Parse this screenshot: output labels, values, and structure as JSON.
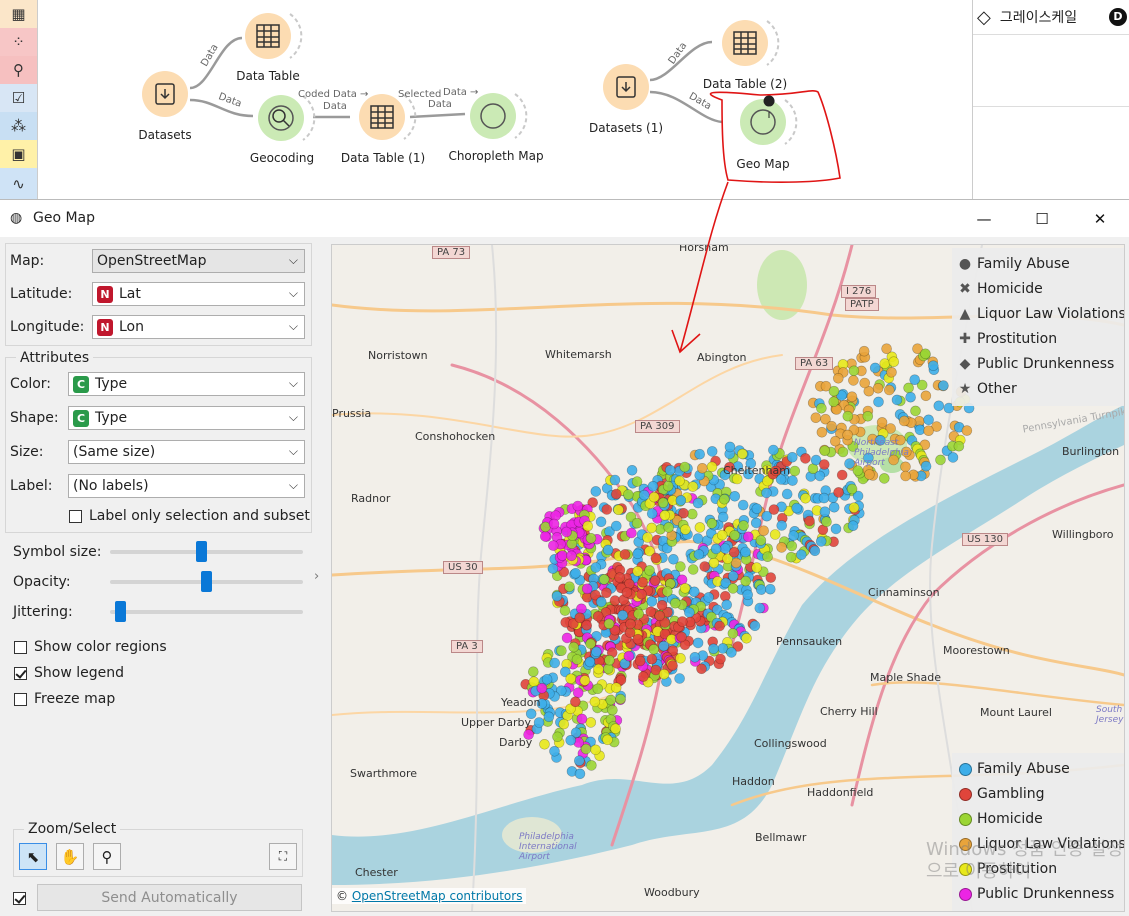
{
  "workflow": {
    "nodes": {
      "datasets": "Datasets",
      "data_table": "Data Table",
      "geocoding": "Geocoding",
      "data_table_1": "Data Table (1)",
      "choropleth_map": "Choropleth Map",
      "datasets_1": "Datasets (1)",
      "data_table_2": "Data Table (2)",
      "geo_map": "Geo Map"
    },
    "links": {
      "datasets_to_table": "Data",
      "datasets_to_geocoding": "Data",
      "geocoding_to_table_a": "Coded",
      "geocoding_to_table_b": "Data →",
      "geocoding_to_table_c": "Data",
      "table_to_choropleth_a": "Selected",
      "table_to_choropleth_b": "Data →",
      "table_to_choropleth_c": "Data",
      "datasets1_to_table2": "Data",
      "datasets1_to_geomap": "Data"
    }
  },
  "app_bar": {
    "label": "그레이스케일"
  },
  "window": {
    "title": "Geo Map",
    "minimize": "—",
    "maximize": "☐",
    "close": "✕"
  },
  "panel": {
    "map_label": "Map:",
    "map_value": "OpenStreetMap",
    "latitude_label": "Latitude:",
    "latitude_value": "Lat",
    "longitude_label": "Longitude:",
    "longitude_value": "Lon",
    "numeric_badge": "N",
    "categorical_badge": "C",
    "attributes_title": "Attributes",
    "color_label": "Color:",
    "color_value": "Type",
    "shape_label": "Shape:",
    "shape_value": "Type",
    "size_label": "Size:",
    "size_value": "(Same size)",
    "label_label": "Label:",
    "label_value": "(No labels)",
    "label_only_selection": "Label only selection and subset",
    "symbol_size_label": "Symbol size:",
    "opacity_label": "Opacity:",
    "jittering_label": "Jittering:",
    "symbol_size_level": 0.47,
    "opacity_level": 0.5,
    "jittering_level": 0.03,
    "show_color_regions": "Show color regions",
    "show_legend": "Show legend",
    "freeze_map": "Freeze map",
    "zoom_select_title": "Zoom/Select",
    "send_automatically": "Send Automatically"
  },
  "map": {
    "attribution_prefix": "©",
    "attribution_link": "OpenStreetMap contributors",
    "places": [
      "Horsham",
      "Norristown",
      "Whitemarsh",
      "Abington",
      "Prussia",
      "Conshohocken",
      "Radnor",
      "Cheltenham",
      "Burlington",
      "Willingboro",
      "Cinnaminson",
      "Pennsauken",
      "Moorestown",
      "Maple Shade",
      "Cherry Hill",
      "Mount Laurel",
      "Haddonfield",
      "Haddon",
      "Collingswood",
      "Bellmawr",
      "Yeadon",
      "Upper Darby",
      "Darby",
      "Swarthmore",
      "Chester",
      "Woodbury",
      "Northeast Philadelphia Airport",
      "Philadelphia International Airport",
      "Pennsylvania Turnpike",
      "South Jersey"
    ],
    "route_shields": [
      "PA 73",
      "I 276",
      "PATP",
      "PA 63",
      "PA 309",
      "US 30",
      "PA 3",
      "US 130"
    ],
    "watermark": "Windows 정품 인증 설정으로 이동하여"
  },
  "shape_legend": [
    {
      "label": "Family Abuse",
      "symbol": "●"
    },
    {
      "label": "Homicide",
      "symbol": "✖"
    },
    {
      "label": "Liquor Law Violations",
      "symbol": "▲"
    },
    {
      "label": "Prostitution",
      "symbol": "✚"
    },
    {
      "label": "Public Drunkenness",
      "symbol": "◆"
    },
    {
      "label": "Other",
      "symbol": "★"
    }
  ],
  "color_legend": [
    {
      "label": "Family Abuse",
      "color": "#3daee9"
    },
    {
      "label": "Gambling",
      "color": "#e0453b"
    },
    {
      "label": "Homicide",
      "color": "#9bd534"
    },
    {
      "label": "Liquor Law Violations",
      "color": "#e9a43b"
    },
    {
      "label": "Prostitution",
      "color": "#e8e81a"
    },
    {
      "label": "Public Drunkenness",
      "color": "#ec25e4"
    }
  ]
}
